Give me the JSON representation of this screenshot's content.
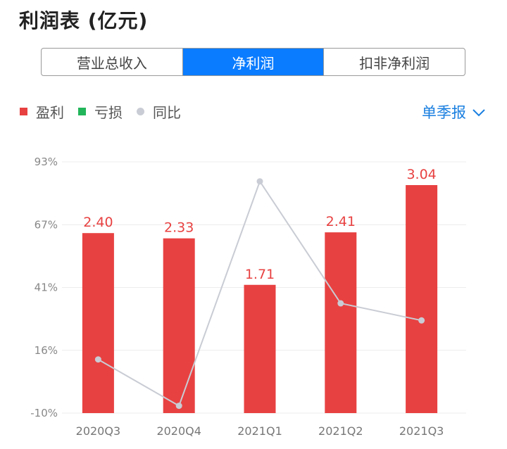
{
  "title": "利润表 (亿元)",
  "tabs": [
    {
      "label": "营业总收入",
      "active": false
    },
    {
      "label": "净利润",
      "active": true
    },
    {
      "label": "扣非净利润",
      "active": false
    }
  ],
  "legend": [
    {
      "label": "盈利",
      "color": "#e84141",
      "shape": "square"
    },
    {
      "label": "亏损",
      "color": "#22b55a",
      "shape": "square"
    },
    {
      "label": "同比",
      "color": "#c9ccd4",
      "shape": "dot"
    }
  ],
  "period_selector": {
    "label": "单季报",
    "icon": "chevron-down-icon"
  },
  "colors": {
    "accent": "#0a7cff",
    "profit": "#e84141",
    "loss": "#22b55a",
    "yoy": "#c9ccd4"
  },
  "chart_data": {
    "type": "bar",
    "categories": [
      "2020Q3",
      "2020Q4",
      "2021Q1",
      "2021Q2",
      "2021Q3"
    ],
    "series": [
      {
        "name": "盈利",
        "type": "bar",
        "values": [
          2.4,
          2.33,
          1.71,
          2.41,
          3.04
        ],
        "labels": [
          "2.40",
          "2.33",
          "1.71",
          "2.41",
          "3.04"
        ],
        "color": "#e84141"
      },
      {
        "name": "同比",
        "type": "line",
        "values": [
          12,
          -7,
          85,
          35,
          28
        ],
        "color": "#c9ccd4",
        "axis": "percent"
      }
    ],
    "y_ticks": [
      "93%",
      "67%",
      "41%",
      "16%",
      "-10%"
    ],
    "y_percent_range": [
      -10,
      93
    ],
    "grid": true
  }
}
